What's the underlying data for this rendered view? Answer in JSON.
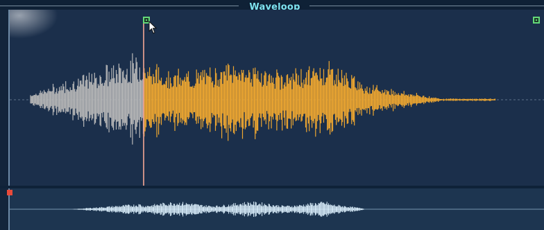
{
  "window": {
    "title": "Waveloop"
  },
  "waveform": {
    "loop_start_marker": "loop-start",
    "loop_end_marker": "loop-end",
    "colors": {
      "background": "#1b2f4b",
      "active_wave": "#f0a830",
      "inactive_wave": "#b9b9b9",
      "overview_wave": "#dff3ff",
      "playhead": "#e8a090",
      "centerline": "#8aa0b5",
      "marker": "#64d878"
    }
  },
  "icons": {
    "cursor": "mouse-pointer-icon",
    "loop_start": "square-marker-icon",
    "loop_end": "square-marker-icon",
    "overview_flag": "red-flag-icon"
  }
}
